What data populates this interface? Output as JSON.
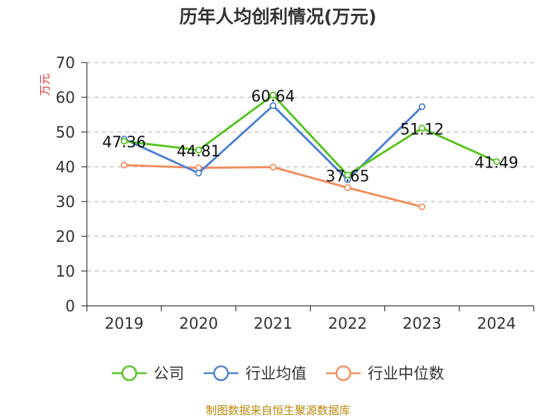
{
  "chart_data": {
    "type": "line",
    "title": "历年人均创利情况(万元)",
    "ylabel": "万元",
    "categories": [
      "2019",
      "2020",
      "2021",
      "2022",
      "2023",
      "2024"
    ],
    "ylim": [
      0,
      70
    ],
    "yticks": [
      0,
      10,
      20,
      30,
      40,
      50,
      60,
      70
    ],
    "grid": true,
    "legend_position": "bottom",
    "series": [
      {
        "name": "公司",
        "color": "#52c41a",
        "values": [
          47.36,
          44.81,
          60.64,
          37.65,
          51.12,
          41.49
        ],
        "labels": [
          "47.36",
          "44.81",
          "60.64",
          "37.65",
          "51.12",
          "41.49"
        ]
      },
      {
        "name": "行业均值",
        "color": "#4a7fd4",
        "values": [
          48.0,
          38.2,
          57.6,
          36.3,
          57.3,
          null
        ]
      },
      {
        "name": "行业中位数",
        "color": "#f28c5a",
        "values": [
          40.5,
          39.7,
          39.9,
          34.0,
          28.5,
          null
        ]
      }
    ]
  },
  "source": "制图数据来自恒生聚源数据库"
}
